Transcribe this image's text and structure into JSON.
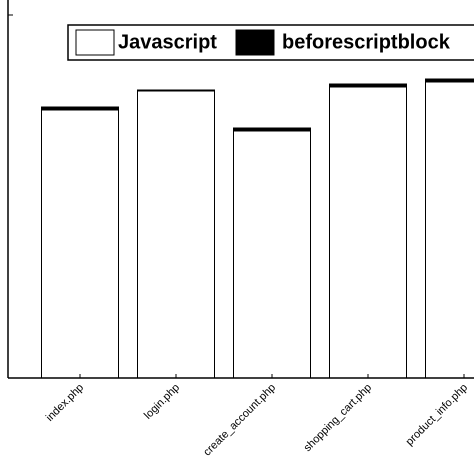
{
  "chart_data": {
    "type": "stacked-bar",
    "categories": [
      "index.php",
      "login.php",
      "create_account.php",
      "shopping_cart.php",
      "product_info.php"
    ],
    "series": [
      {
        "name": "Javascript",
        "color": "#ffffff",
        "values": [
          268,
          287,
          247,
          291,
          296
        ]
      },
      {
        "name": "beforescriptblock",
        "color": "#000000",
        "values": [
          3,
          1,
          3,
          3,
          3
        ]
      }
    ],
    "ylim": [
      0,
      380
    ]
  }
}
